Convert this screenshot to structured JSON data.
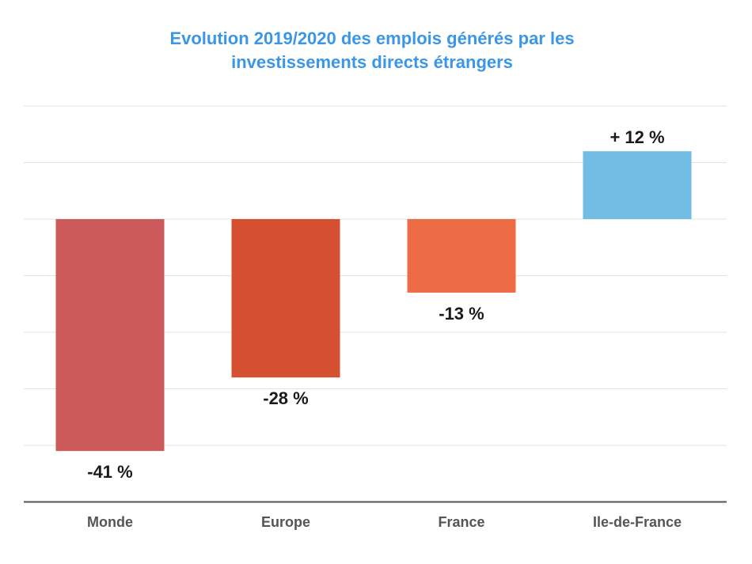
{
  "chart_data": {
    "type": "bar",
    "title_lines": [
      "Evolution 2019/2020 des emplois générés par les",
      "investissements directs étrangers"
    ],
    "categories": [
      "Monde",
      "Europe",
      "France",
      "Ile-de-France"
    ],
    "values": [
      -41,
      -28,
      -13,
      12
    ],
    "value_labels": [
      "-41 %",
      "-28 %",
      "-13 %",
      "+ 12 %"
    ],
    "colors": [
      "#cd5a5b",
      "#d54f31",
      "#ed6c45",
      "#72bde3"
    ],
    "ylim": [
      -50,
      20
    ],
    "grid": true,
    "legend": "none"
  }
}
